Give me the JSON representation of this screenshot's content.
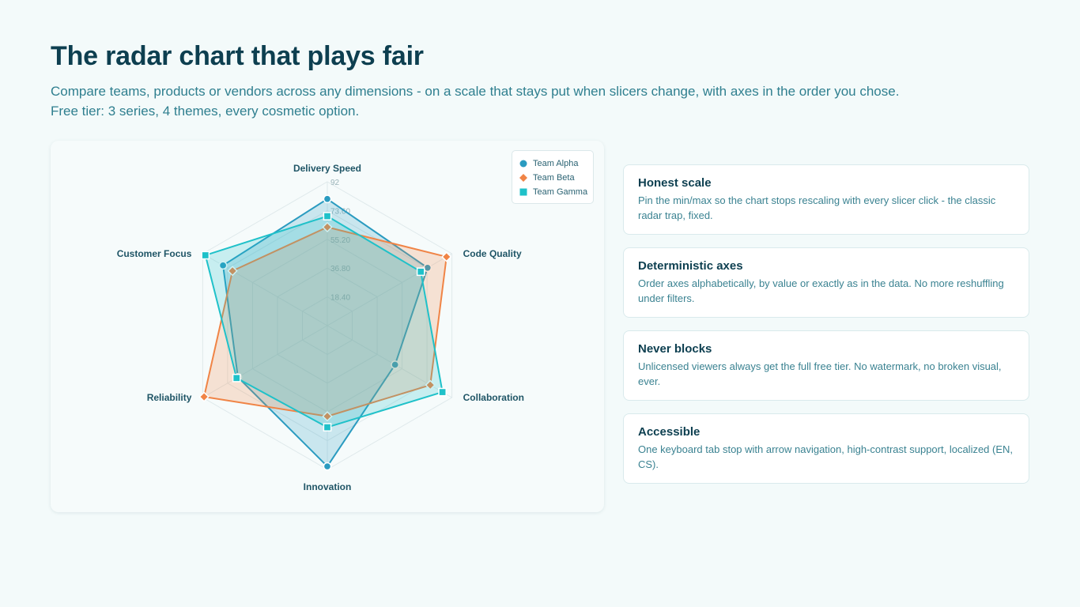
{
  "header": {
    "title": "The radar chart that plays fair",
    "subtitle_line1": "Compare teams, products or vendors across any dimensions - on a scale that stays put when slicers change, with axes in the order you chose.",
    "subtitle_line2": "Free tier: 3 series, 4 themes, every cosmetic option."
  },
  "chart_data": {
    "type": "radar",
    "title": "",
    "axes": [
      "Delivery Speed",
      "Code Quality",
      "Collaboration",
      "Innovation",
      "Reliability",
      "Customer Focus"
    ],
    "scale": {
      "min": 0,
      "max": 92
    },
    "ticks": [
      "18.40",
      "36.80",
      "55.20",
      "73.60",
      "92"
    ],
    "legend_position": "top-right",
    "grid": true,
    "series": [
      {
        "name": "Team Alpha",
        "color": "#2a9bc0",
        "marker": "circle",
        "values": [
          81,
          74,
          50,
          90,
          66,
          77
        ]
      },
      {
        "name": "Team Beta",
        "color": "#f08446",
        "marker": "diamond",
        "values": [
          63,
          88,
          76,
          58,
          91,
          70
        ]
      },
      {
        "name": "Team Gamma",
        "color": "#1fc1c9",
        "marker": "square",
        "values": [
          70,
          69,
          85,
          65,
          67,
          90
        ]
      }
    ]
  },
  "features": [
    {
      "title": "Honest scale",
      "description": "Pin the min/max so the chart stops rescaling with every slicer click - the classic radar trap, fixed."
    },
    {
      "title": "Deterministic axes",
      "description": "Order axes alphabetically, by value or exactly as in the data. No more reshuffling under filters."
    },
    {
      "title": "Never blocks",
      "description": "Unlicensed viewers always get the full free tier. No watermark, no broken visual, ever."
    },
    {
      "title": "Accessible",
      "description": "One keyboard tab stop with arrow navigation, high-contrast support, localized (EN, CS)."
    }
  ]
}
